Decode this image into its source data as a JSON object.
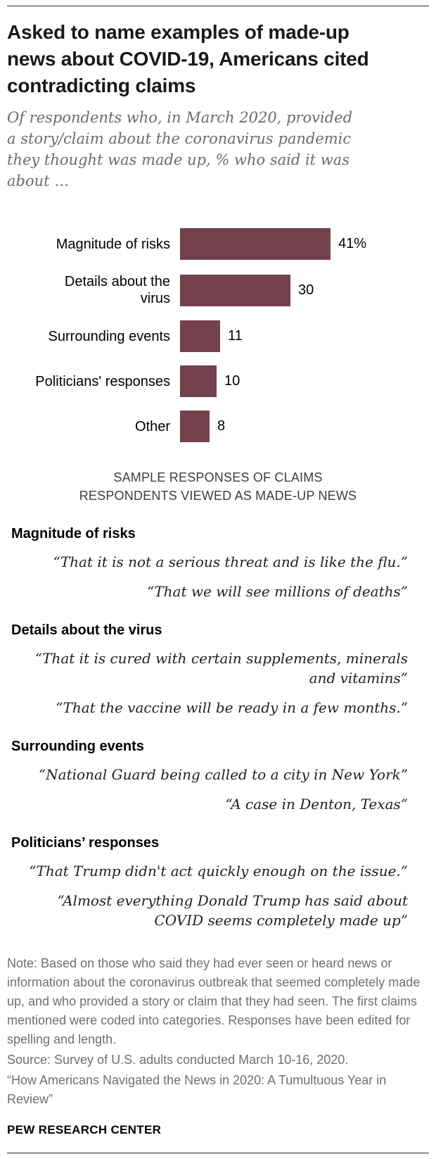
{
  "header": {
    "title": "Asked to name examples of made-up news about COVID-19, Americans cited contradicting claims",
    "subtitle": "Of respondents who, in March 2020, provided a story/claim about the coronavirus pandemic they thought was made up, % who said it was about …"
  },
  "chart_data": {
    "type": "bar",
    "orientation": "horizontal",
    "categories": [
      "Magnitude of risks",
      "Details about the\nvirus",
      "Surrounding events",
      "Politicians' responses",
      "Other"
    ],
    "values": [
      41,
      30,
      11,
      10,
      8
    ],
    "value_labels": [
      "41%",
      "30",
      "11",
      "10",
      "8"
    ],
    "bar_color": "#74414e",
    "xlim": [
      0,
      50
    ],
    "grid": false,
    "legend": "none"
  },
  "samples": {
    "heading": "SAMPLE RESPONSES OF CLAIMS RESPONDENTS VIEWED AS MADE-UP NEWS",
    "groups": [
      {
        "label": "Magnitude of risks",
        "quotes": [
          "“That it is not a serious threat and is like the flu.”",
          "“That we will see millions of deaths”"
        ]
      },
      {
        "label": "Details about the virus",
        "quotes": [
          "“That it is cured with certain supplements, minerals and vitamins”",
          "“That the vaccine will be ready in a few months.”"
        ]
      },
      {
        "label": "Surrounding events",
        "quotes": [
          "“National Guard being called to a city in New York”",
          "“A case in Denton, Texas”"
        ]
      },
      {
        "label": "Politicians’ responses",
        "quotes": [
          "“That Trump didn't act quickly enough on the issue.”",
          "“Almost everything Donald Trump has said about COVID seems completely made up”"
        ]
      }
    ]
  },
  "footer": {
    "note": "Note: Based on those who said they had ever seen or heard news or information about the coronavirus outbreak that seemed completely made up, and who provided a story or claim that they had seen. The first claims mentioned were coded into categories. Responses have been edited for spelling and length.",
    "source": "Source: Survey of U.S. adults conducted March 10-16, 2020.",
    "report": "“How Americans Navigated the News in 2020: A Tumultuous Year in Review”",
    "brand": "PEW RESEARCH CENTER"
  }
}
